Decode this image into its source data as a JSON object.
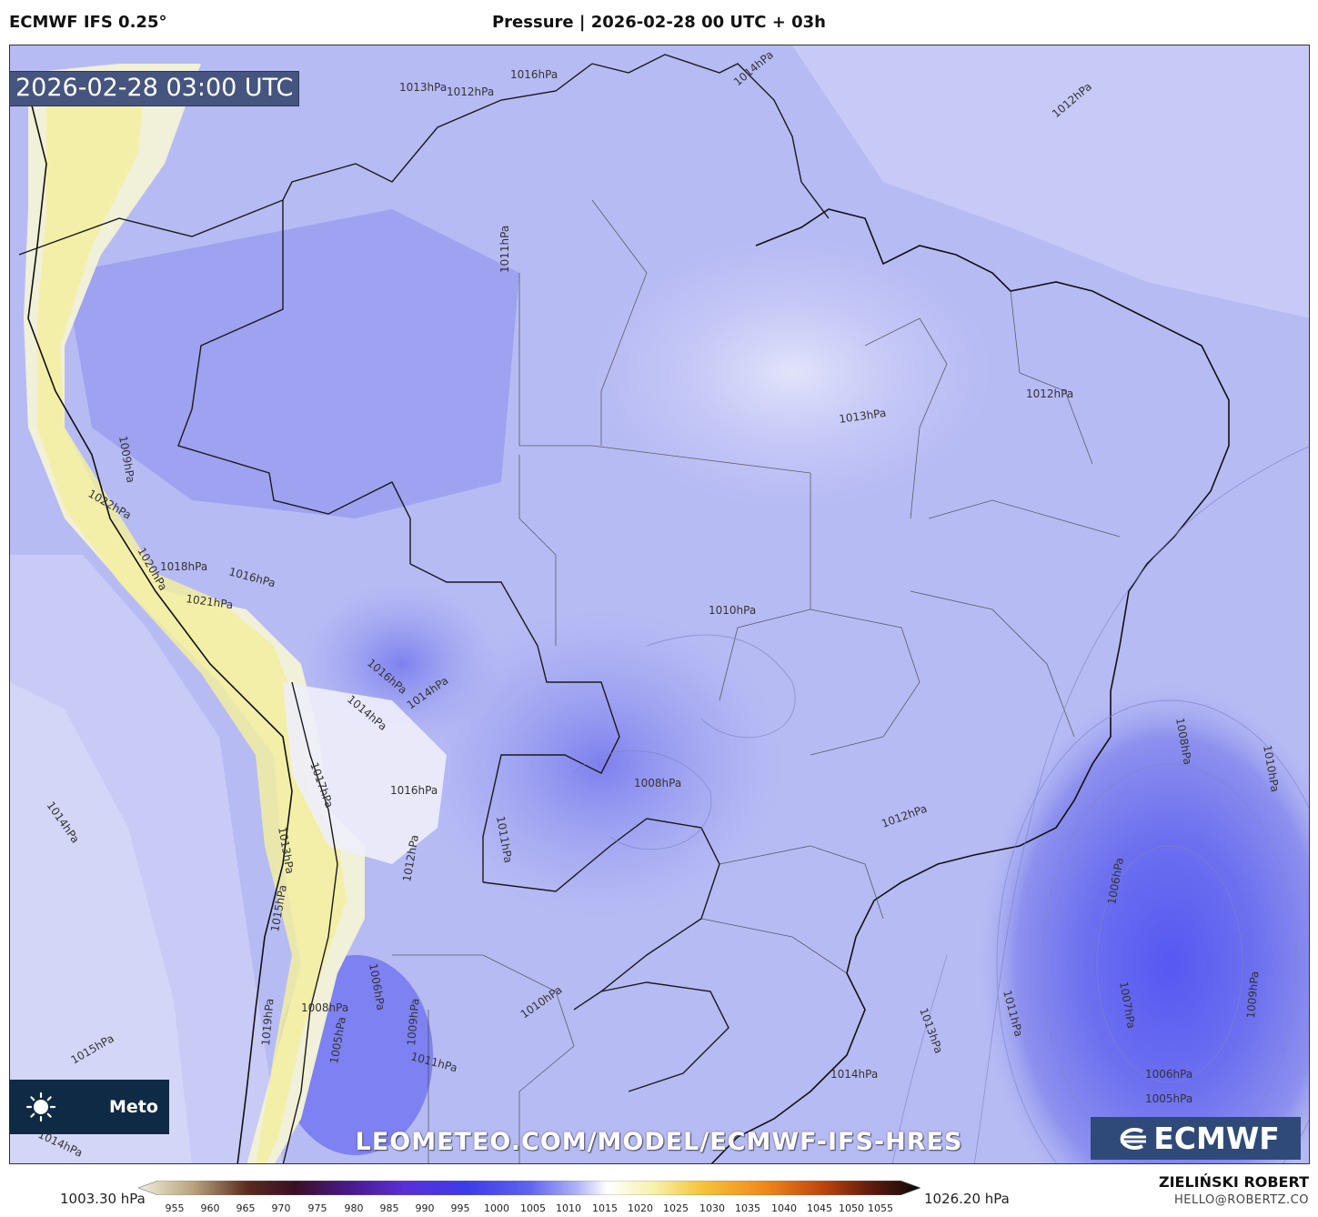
{
  "header": {
    "model": "ECMWF IFS 0.25°",
    "title": "Pressure | 2026-02-28 00 UTC + 03h"
  },
  "valid_time": "2026-02-28 03:00 UTC",
  "watermark": "LEOMETEO.COM/MODEL/ECMWF-IFS-HRES",
  "badge": {
    "text": "Meto",
    "icon": "sun-icon"
  },
  "logo": "ECMWF",
  "author": {
    "name": "ZIELIŃSKI ROBERT",
    "email": "HELLO@ROBERTZ.CO"
  },
  "colorbar": {
    "min_label": "1003.30 hPa",
    "max_label": "1026.20 hPa",
    "ticks": [
      "955",
      "960",
      "965",
      "970",
      "975",
      "980",
      "985",
      "990",
      "995",
      "1000",
      "1005",
      "1010",
      "1015",
      "1020",
      "1025",
      "1030",
      "1035",
      "1040",
      "1045",
      "1050",
      "1055"
    ]
  },
  "isobar_labels": [
    {
      "text": "1016hPa"
    },
    {
      "text": "1013hPa"
    },
    {
      "text": "1012hPa"
    },
    {
      "text": "1014hPa"
    },
    {
      "text": "1011hPa"
    },
    {
      "text": "1012hPa"
    },
    {
      "text": "1013hPa"
    },
    {
      "text": "1012hPa"
    },
    {
      "text": "1010hPa"
    },
    {
      "text": "1008hPa"
    },
    {
      "text": "1012hPa"
    },
    {
      "text": "1008hPa"
    },
    {
      "text": "1010hPa"
    },
    {
      "text": "1006hPa"
    },
    {
      "text": "1007hPa"
    },
    {
      "text": "1011hPa"
    },
    {
      "text": "1009hPa"
    },
    {
      "text": "1006hPa"
    },
    {
      "text": "1005hPa"
    },
    {
      "text": "1014hPa"
    },
    {
      "text": "1013hPa"
    },
    {
      "text": "1011hPa"
    },
    {
      "text": "1010hPa"
    },
    {
      "text": "1014hPa"
    },
    {
      "text": "1022hPa"
    },
    {
      "text": "1020hPa"
    },
    {
      "text": "1018hPa"
    },
    {
      "text": "1016hPa"
    },
    {
      "text": "1021hPa"
    },
    {
      "text": "1016hPa"
    },
    {
      "text": "1014hPa"
    },
    {
      "text": "1016hPa"
    },
    {
      "text": "1017hPa"
    },
    {
      "text": "1013hPa"
    },
    {
      "text": "1015hPa"
    },
    {
      "text": "1014hPa"
    },
    {
      "text": "1008hPa"
    },
    {
      "text": "1006hPa"
    },
    {
      "text": "1005hPa"
    },
    {
      "text": "1011hPa"
    },
    {
      "text": "1009hPa"
    },
    {
      "text": "1019hPa"
    },
    {
      "text": "1015hPa"
    },
    {
      "text": "1014hPa"
    },
    {
      "text": "1012hPa"
    },
    {
      "text": "1009hPa"
    }
  ],
  "colors": {
    "low": "#5a5ef0",
    "mid": "#b9bdf5",
    "high": "#f3f0b0",
    "frame": "#333333"
  }
}
